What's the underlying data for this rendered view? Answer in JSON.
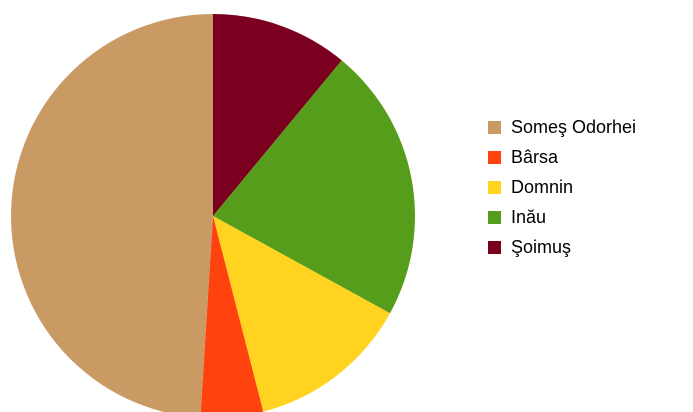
{
  "chart_data": {
    "type": "pie",
    "title": "",
    "start_angle_deg": 0,
    "direction": "clockwise",
    "legend_position": "right",
    "slices": [
      {
        "label": "Șoimuș",
        "value": 11,
        "color": "#7b0020"
      },
      {
        "label": "Inău",
        "value": 22,
        "color": "#579d1c"
      },
      {
        "label": "Domnin",
        "value": 13,
        "color": "#ffd320"
      },
      {
        "label": "Bârsa",
        "value": 5,
        "color": "#ff420e"
      },
      {
        "label": "Someș Odorhei",
        "value": 49,
        "color": "#c99a64"
      }
    ],
    "legend": [
      {
        "label": "Someş Odorhei",
        "color": "#c99a64"
      },
      {
        "label": "Bârsa",
        "color": "#ff420e"
      },
      {
        "label": "Domnin",
        "color": "#ffd320"
      },
      {
        "label": "Inău",
        "color": "#579d1c"
      },
      {
        "label": "Şoimuş",
        "color": "#7b0020"
      }
    ]
  }
}
